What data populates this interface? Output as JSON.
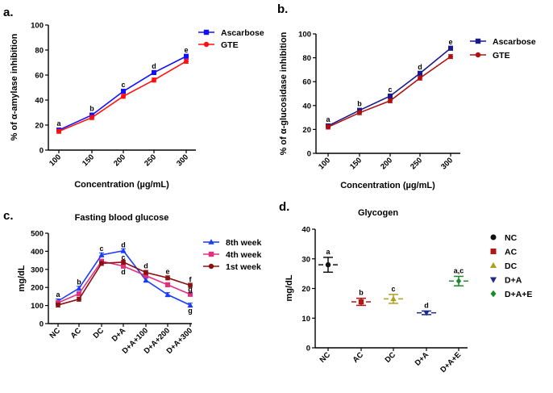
{
  "chart_data": [
    {
      "panel": "a.",
      "type": "line",
      "title": "",
      "xlabel": "Concentration (µg/mL)",
      "ylabel": "% of α-amylase inhibition",
      "categories": [
        "100",
        "150",
        "200",
        "250",
        "300"
      ],
      "ylim": [
        0,
        100
      ],
      "yticks": [
        0,
        20,
        40,
        60,
        80,
        100
      ],
      "legend_position": "top-right",
      "series": [
        {
          "name": "Ascarbose",
          "color": "#1010ff",
          "marker": "square",
          "values": [
            16,
            28,
            47,
            62,
            75
          ]
        },
        {
          "name": "GTE",
          "color": "#ff1010",
          "marker": "circle",
          "values": [
            15,
            26,
            43,
            56,
            71
          ]
        }
      ],
      "significance": [
        "a",
        "b",
        "c",
        "d",
        "e"
      ]
    },
    {
      "panel": "b.",
      "type": "line",
      "title": "",
      "xlabel": "Concentration (µg/mL)",
      "ylabel": "% of α-glucosidase inhibition",
      "categories": [
        "100",
        "150",
        "200",
        "250",
        "300"
      ],
      "ylim": [
        0,
        100
      ],
      "yticks": [
        0,
        20,
        40,
        60,
        80,
        100
      ],
      "legend_position": "top-right",
      "series": [
        {
          "name": "Ascarbose",
          "color": "#1a1a8c",
          "marker": "square",
          "values": [
            23,
            36,
            48,
            67,
            88
          ]
        },
        {
          "name": "GTE",
          "color": "#b01010",
          "marker": "circle",
          "values": [
            22,
            34,
            44,
            63,
            81
          ]
        }
      ],
      "significance": [
        "a",
        "b",
        "c",
        "d",
        "e"
      ]
    },
    {
      "panel": "c.",
      "type": "line",
      "title": "Fasting blood glucose",
      "xlabel": "",
      "ylabel": "mg/dL",
      "categories": [
        "NC",
        "AC",
        "DC",
        "D+A",
        "D+A+100",
        "D+A+200",
        "D+A+300"
      ],
      "ylim": [
        0,
        500
      ],
      "yticks": [
        0,
        100,
        200,
        300,
        400,
        500
      ],
      "legend_position": "top-right",
      "series": [
        {
          "name": "8th week",
          "color": "#1a3cff",
          "marker": "triangle",
          "values": [
            125,
            195,
            380,
            403,
            240,
            160,
            102
          ]
        },
        {
          "name": "4th week",
          "color": "#e0307f",
          "marker": "square",
          "values": [
            115,
            165,
            345,
            318,
            265,
            215,
            162
          ]
        },
        {
          "name": "1st week",
          "color": "#8b1010",
          "marker": "circle",
          "values": [
            103,
            135,
            333,
            340,
            283,
            253,
            212
          ]
        }
      ],
      "significance": [
        {
          "category": "NC",
          "labels": [
            "a"
          ]
        },
        {
          "category": "AC",
          "labels": [
            "b"
          ]
        },
        {
          "category": "DC",
          "labels": [
            "c"
          ]
        },
        {
          "category": "D+A",
          "labels": [
            "d",
            "c",
            "d"
          ]
        },
        {
          "category": "D+A+100",
          "labels": [
            "d"
          ]
        },
        {
          "category": "D+A+200",
          "labels": [
            "e"
          ]
        },
        {
          "category": "D+A+300",
          "labels": [
            "f",
            "g",
            "g"
          ]
        }
      ]
    },
    {
      "panel": "d.",
      "type": "scatter",
      "title": "Glycogen",
      "xlabel": "",
      "ylabel": "mg/dL",
      "categories": [
        "NC",
        "AC",
        "DC",
        "D+A",
        "D+A+E"
      ],
      "ylim": [
        0,
        40
      ],
      "yticks": [
        0,
        10,
        20,
        30,
        40
      ],
      "legend_position": "right",
      "series": [
        {
          "name": "NC",
          "color": "#111111",
          "marker": "circle",
          "value": 28,
          "error": 2.5,
          "label": "a"
        },
        {
          "name": "AC",
          "color": "#b01818",
          "marker": "square",
          "value": 15.5,
          "error": 1.2,
          "label": "b"
        },
        {
          "name": "DC",
          "color": "#b0a020",
          "marker": "triangle",
          "value": 16.5,
          "error": 1.5,
          "label": "c"
        },
        {
          "name": "D+A",
          "color": "#1a2a8c",
          "marker": "triangle-down",
          "value": 11.8,
          "error": 0.6,
          "label": "d"
        },
        {
          "name": "D+A+E",
          "color": "#1a8a2a",
          "marker": "diamond",
          "value": 22.5,
          "error": 1.6,
          "label": "a,c"
        }
      ]
    }
  ]
}
